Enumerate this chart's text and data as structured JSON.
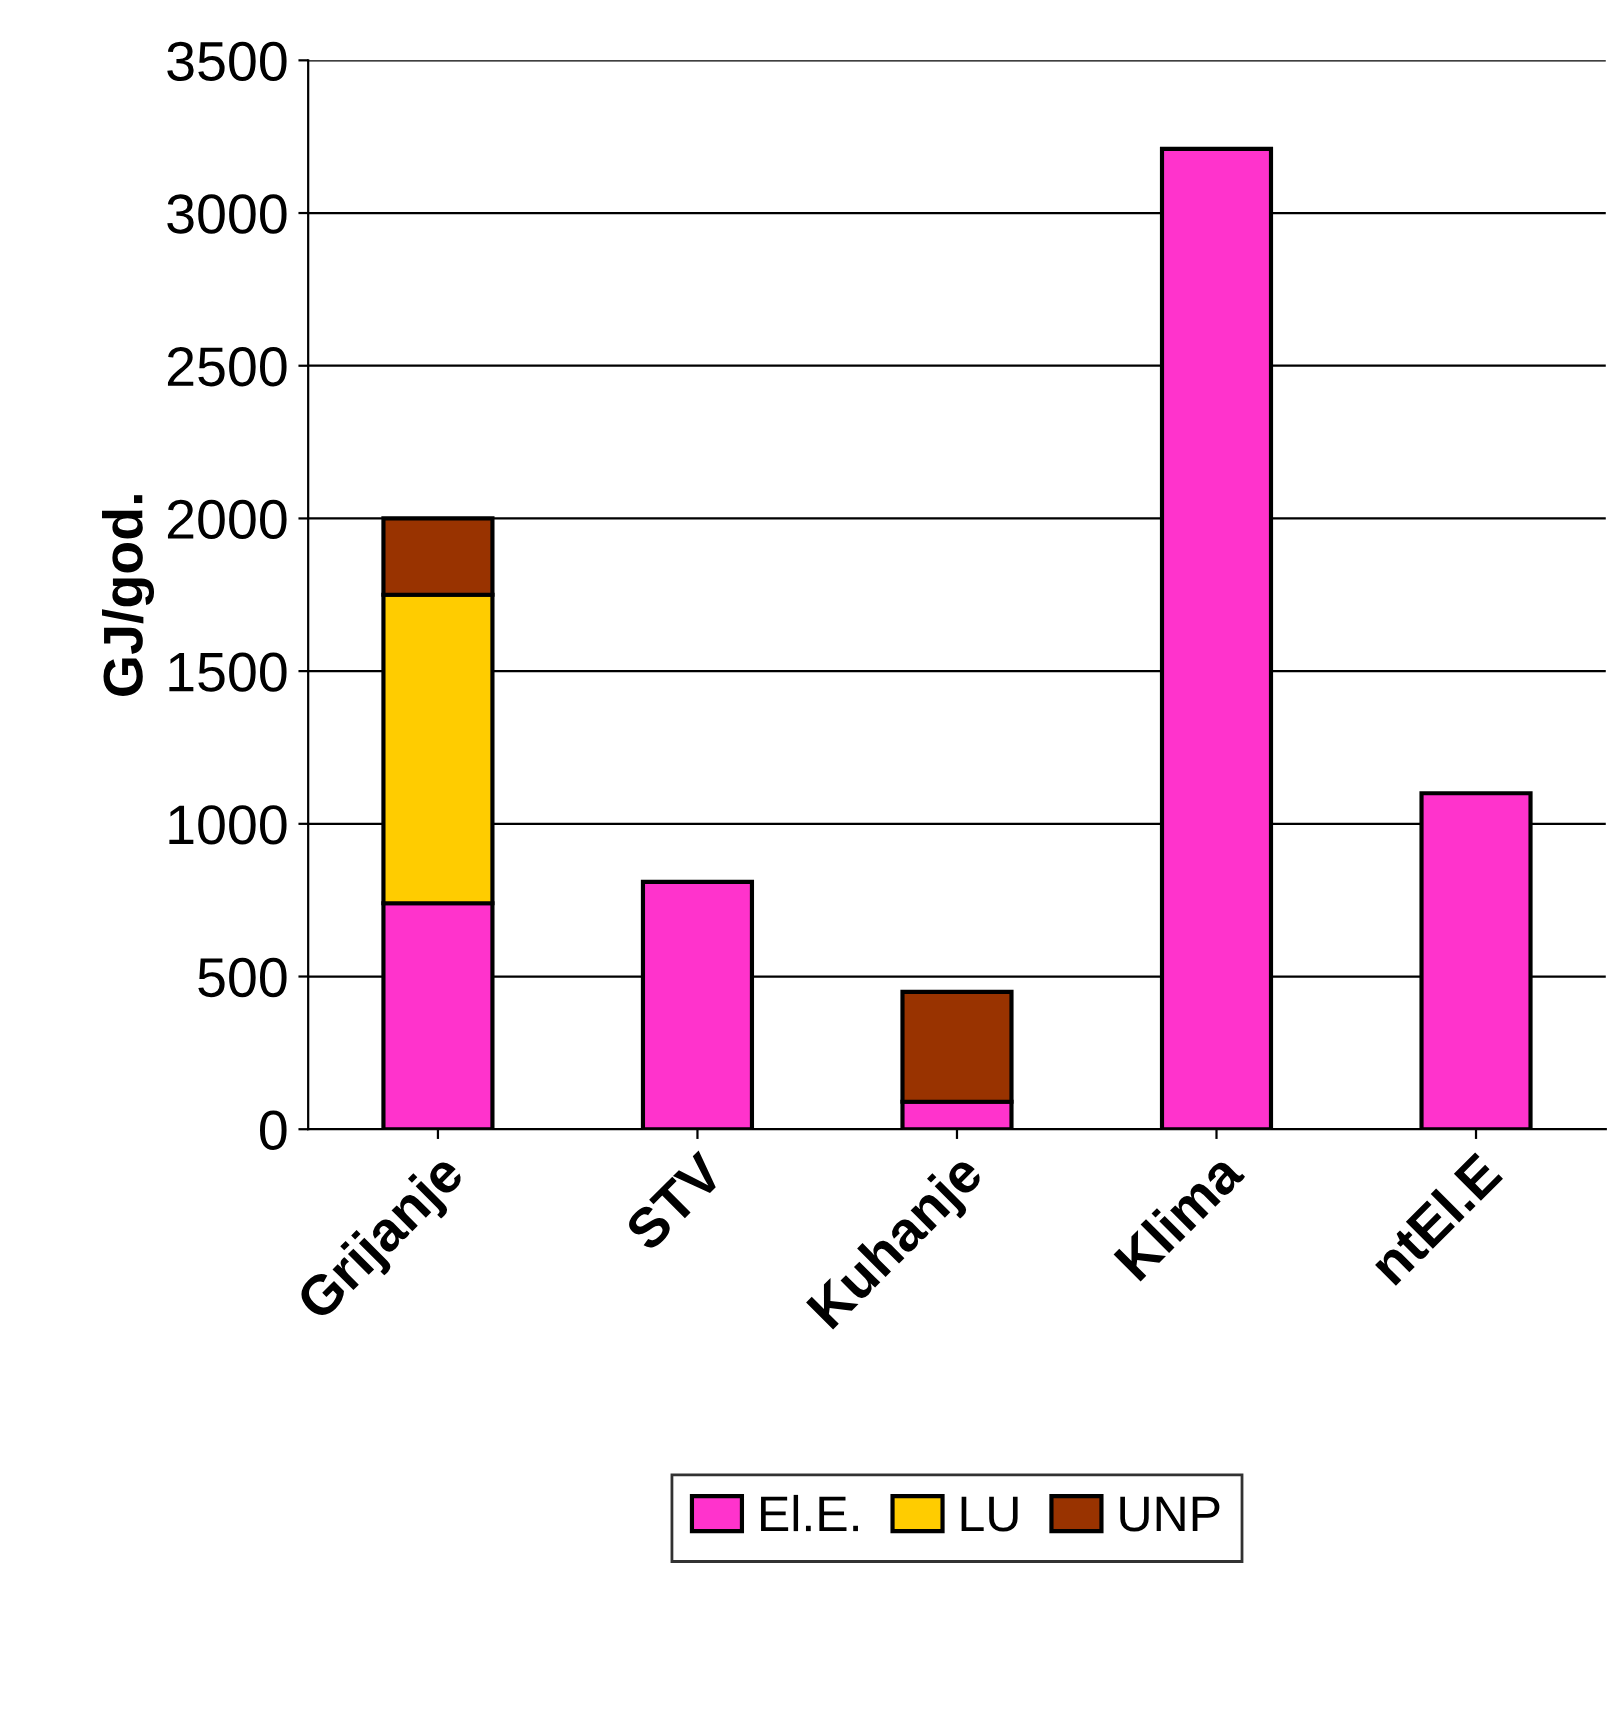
{
  "chart_data": {
    "type": "bar",
    "stacked": true,
    "categories": [
      "Grijanje",
      "STV",
      "Kuhanje",
      "Klima",
      "ntEl.E"
    ],
    "ylabel": "GJ/god.",
    "series": [
      {
        "name": "El.E.",
        "color": "#ff33cc",
        "values": [
          740,
          810,
          90,
          3210,
          1100
        ]
      },
      {
        "name": "LU",
        "color": "#ffcc00",
        "values": [
          1010,
          null,
          null,
          null,
          null
        ]
      },
      {
        "name": "UNP",
        "color": "#993300",
        "values": [
          250,
          null,
          360,
          null,
          null
        ]
      }
    ],
    "ylim": [
      0,
      3500
    ],
    "yticks": [
      0,
      500,
      1000,
      1500,
      2000,
      2500,
      3000,
      3500
    ],
    "grid": "y",
    "legend": "bottom"
  }
}
